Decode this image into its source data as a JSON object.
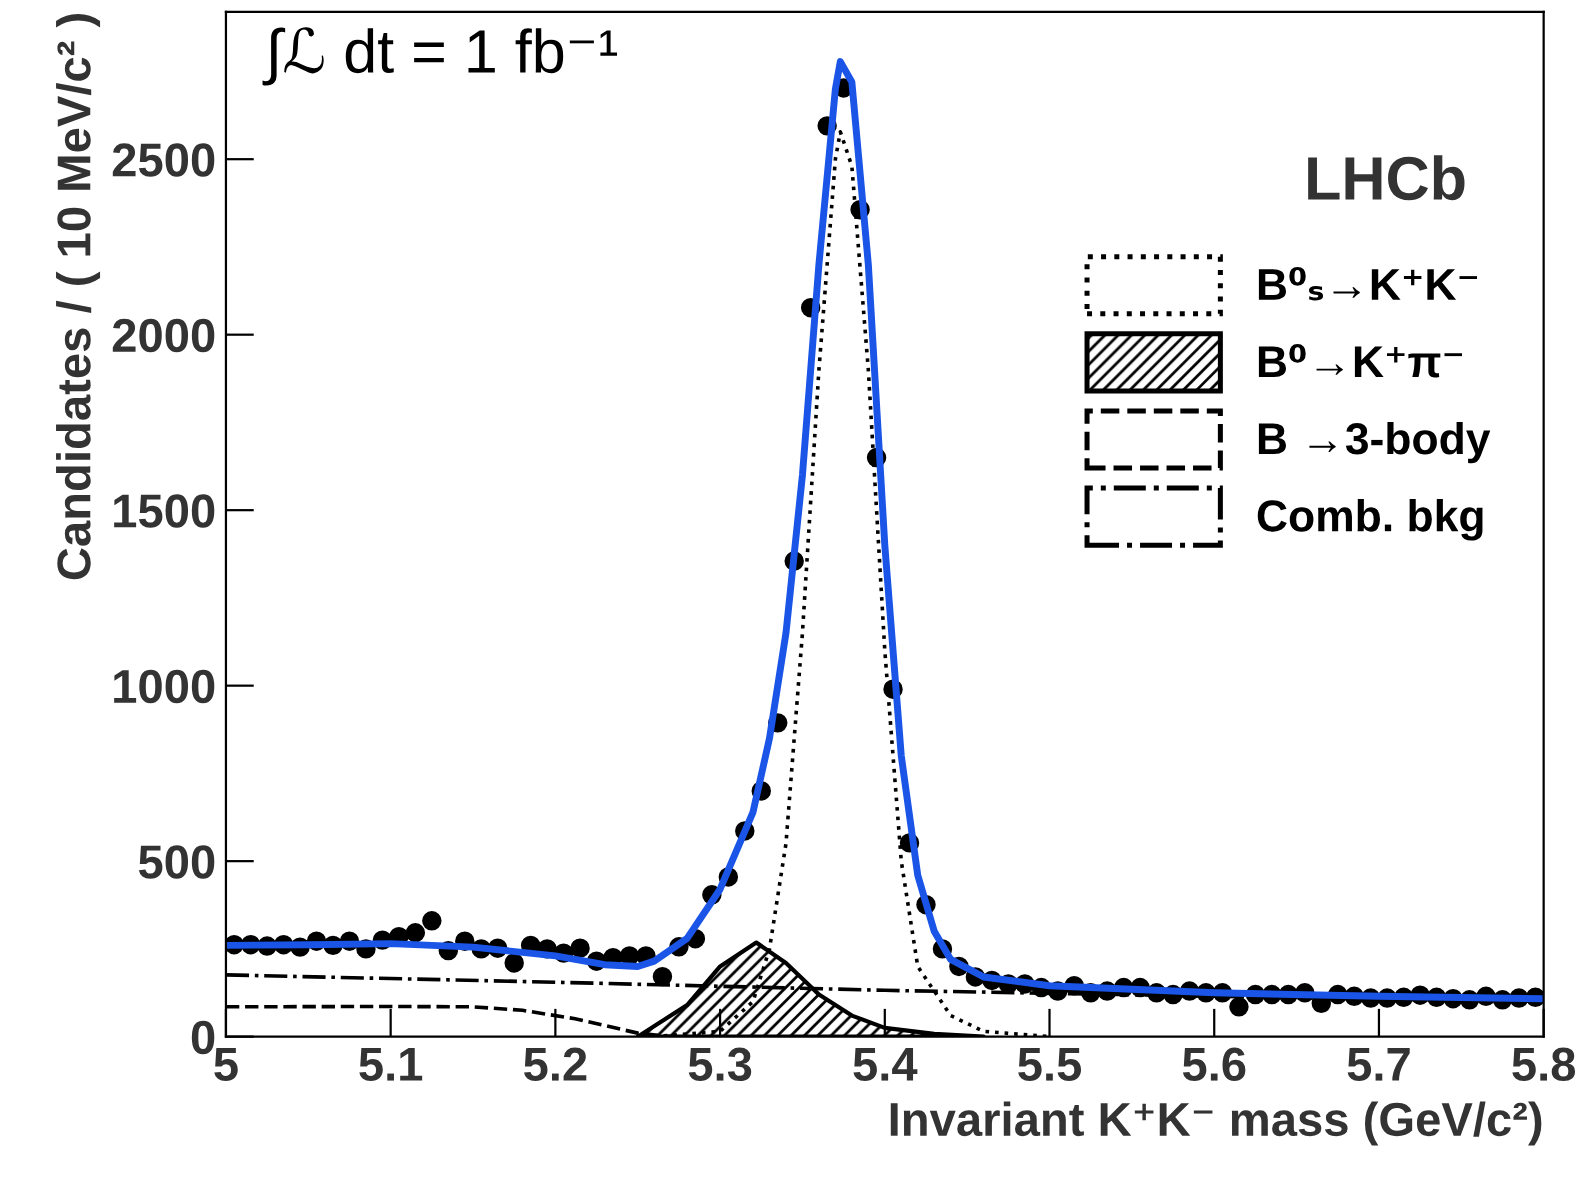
{
  "chart_data": {
    "type": "line",
    "xlabel": "Invariant K⁺K⁻ mass (GeV/c²)",
    "ylabel": "Candidates / ( 10 MeV/c² )",
    "annotations": [
      "∫ℒ dt = 1 fb⁻¹",
      "LHCb"
    ],
    "xlim": [
      5,
      5.8
    ],
    "xticks": [
      5,
      5.1,
      5.2,
      5.3,
      5.4,
      5.5,
      5.6,
      5.7,
      5.8
    ],
    "ylim": [
      0,
      2920
    ],
    "yticks": [
      0,
      500,
      1000,
      1500,
      2000,
      2500
    ],
    "grid": false,
    "legend": "top right",
    "series": [
      {
        "name": "B⁰ₛ→K⁺K⁻",
        "line_style": "dotted",
        "color": "#000000",
        "x": [
          5.26,
          5.3,
          5.32,
          5.33,
          5.34,
          5.35,
          5.36,
          5.37,
          5.373,
          5.38,
          5.39,
          5.4,
          5.41,
          5.42,
          5.44,
          5.46,
          5.5
        ],
        "values": [
          0,
          15,
          100,
          250,
          550,
          1150,
          1900,
          2500,
          2578,
          2480,
          1900,
          1100,
          500,
          200,
          60,
          15,
          0
        ]
      },
      {
        "type": "area",
        "name": "B⁰→K⁺π⁻",
        "color": "#000000",
        "x": [
          5.25,
          5.28,
          5.3,
          5.322,
          5.34,
          5.36,
          5.38,
          5.4,
          5.43,
          5.46
        ],
        "values": [
          0,
          90,
          200,
          268,
          210,
          120,
          60,
          25,
          8,
          0
        ]
      },
      {
        "name": "B →3-body",
        "line_style": "dashed",
        "color": "#000000",
        "x": [
          5.0,
          5.1,
          5.15,
          5.18,
          5.212,
          5.25,
          5.27
        ],
        "values": [
          85,
          86,
          85,
          75,
          51,
          10,
          0
        ]
      },
      {
        "name": "Comb. bkg",
        "line_style": "dashdot",
        "color": "#000000",
        "x": [
          5.0,
          5.2,
          5.4,
          5.6,
          5.8
        ],
        "values": [
          176,
          155,
          132,
          115,
          100
        ]
      },
      {
        "type": "scatter",
        "marker": "circle",
        "color": "#000000",
        "x": [
          5.005,
          5.015,
          5.025,
          5.035,
          5.045,
          5.055,
          5.065,
          5.075,
          5.085,
          5.095,
          5.105,
          5.115,
          5.125,
          5.135,
          5.145,
          5.155,
          5.165,
          5.175,
          5.185,
          5.195,
          5.205,
          5.215,
          5.225,
          5.235,
          5.245,
          5.255,
          5.265,
          5.275,
          5.285,
          5.295,
          5.305,
          5.315,
          5.325,
          5.335,
          5.345,
          5.355,
          5.365,
          5.375,
          5.385,
          5.395,
          5.405,
          5.415,
          5.425,
          5.435,
          5.445,
          5.455,
          5.465,
          5.475,
          5.485,
          5.495,
          5.505,
          5.515,
          5.525,
          5.535,
          5.545,
          5.555,
          5.565,
          5.575,
          5.585,
          5.595,
          5.605,
          5.615,
          5.625,
          5.635,
          5.645,
          5.655,
          5.665,
          5.675,
          5.685,
          5.695,
          5.705,
          5.715,
          5.725,
          5.735,
          5.745,
          5.755,
          5.765,
          5.775,
          5.785,
          5.795
        ],
        "values": [
          262,
          262,
          258,
          262,
          255,
          272,
          260,
          272,
          250,
          275,
          285,
          296,
          330,
          245,
          272,
          250,
          252,
          210,
          260,
          250,
          238,
          252,
          215,
          225,
          230,
          230,
          171,
          256,
          279,
          404,
          455,
          586,
          700,
          894,
          1355,
          2077,
          2595,
          2703,
          2356,
          1650,
          990,
          552,
          376,
          250,
          200,
          170,
          160,
          150,
          150,
          140,
          130,
          145,
          125,
          130,
          140,
          140,
          125,
          120,
          130,
          125,
          125,
          85,
          120,
          120,
          120,
          125,
          95,
          120,
          115,
          110,
          110,
          112,
          118,
          112,
          108,
          105,
          115,
          105,
          110,
          112
        ]
      },
      {
        "line_style": "solid",
        "color": "#1a55e8",
        "x": [
          5.0,
          5.05,
          5.1,
          5.15,
          5.2,
          5.23,
          5.25,
          5.26,
          5.28,
          5.3,
          5.32,
          5.33,
          5.34,
          5.35,
          5.36,
          5.37,
          5.373,
          5.38,
          5.39,
          5.4,
          5.41,
          5.42,
          5.43,
          5.44,
          5.46,
          5.5,
          5.6,
          5.7,
          5.8
        ],
        "values": [
          260,
          262,
          265,
          255,
          230,
          205,
          200,
          215,
          280,
          420,
          640,
          850,
          1150,
          1600,
          2200,
          2700,
          2778,
          2720,
          2200,
          1400,
          800,
          460,
          300,
          220,
          170,
          145,
          125,
          115,
          108
        ]
      }
    ]
  }
}
